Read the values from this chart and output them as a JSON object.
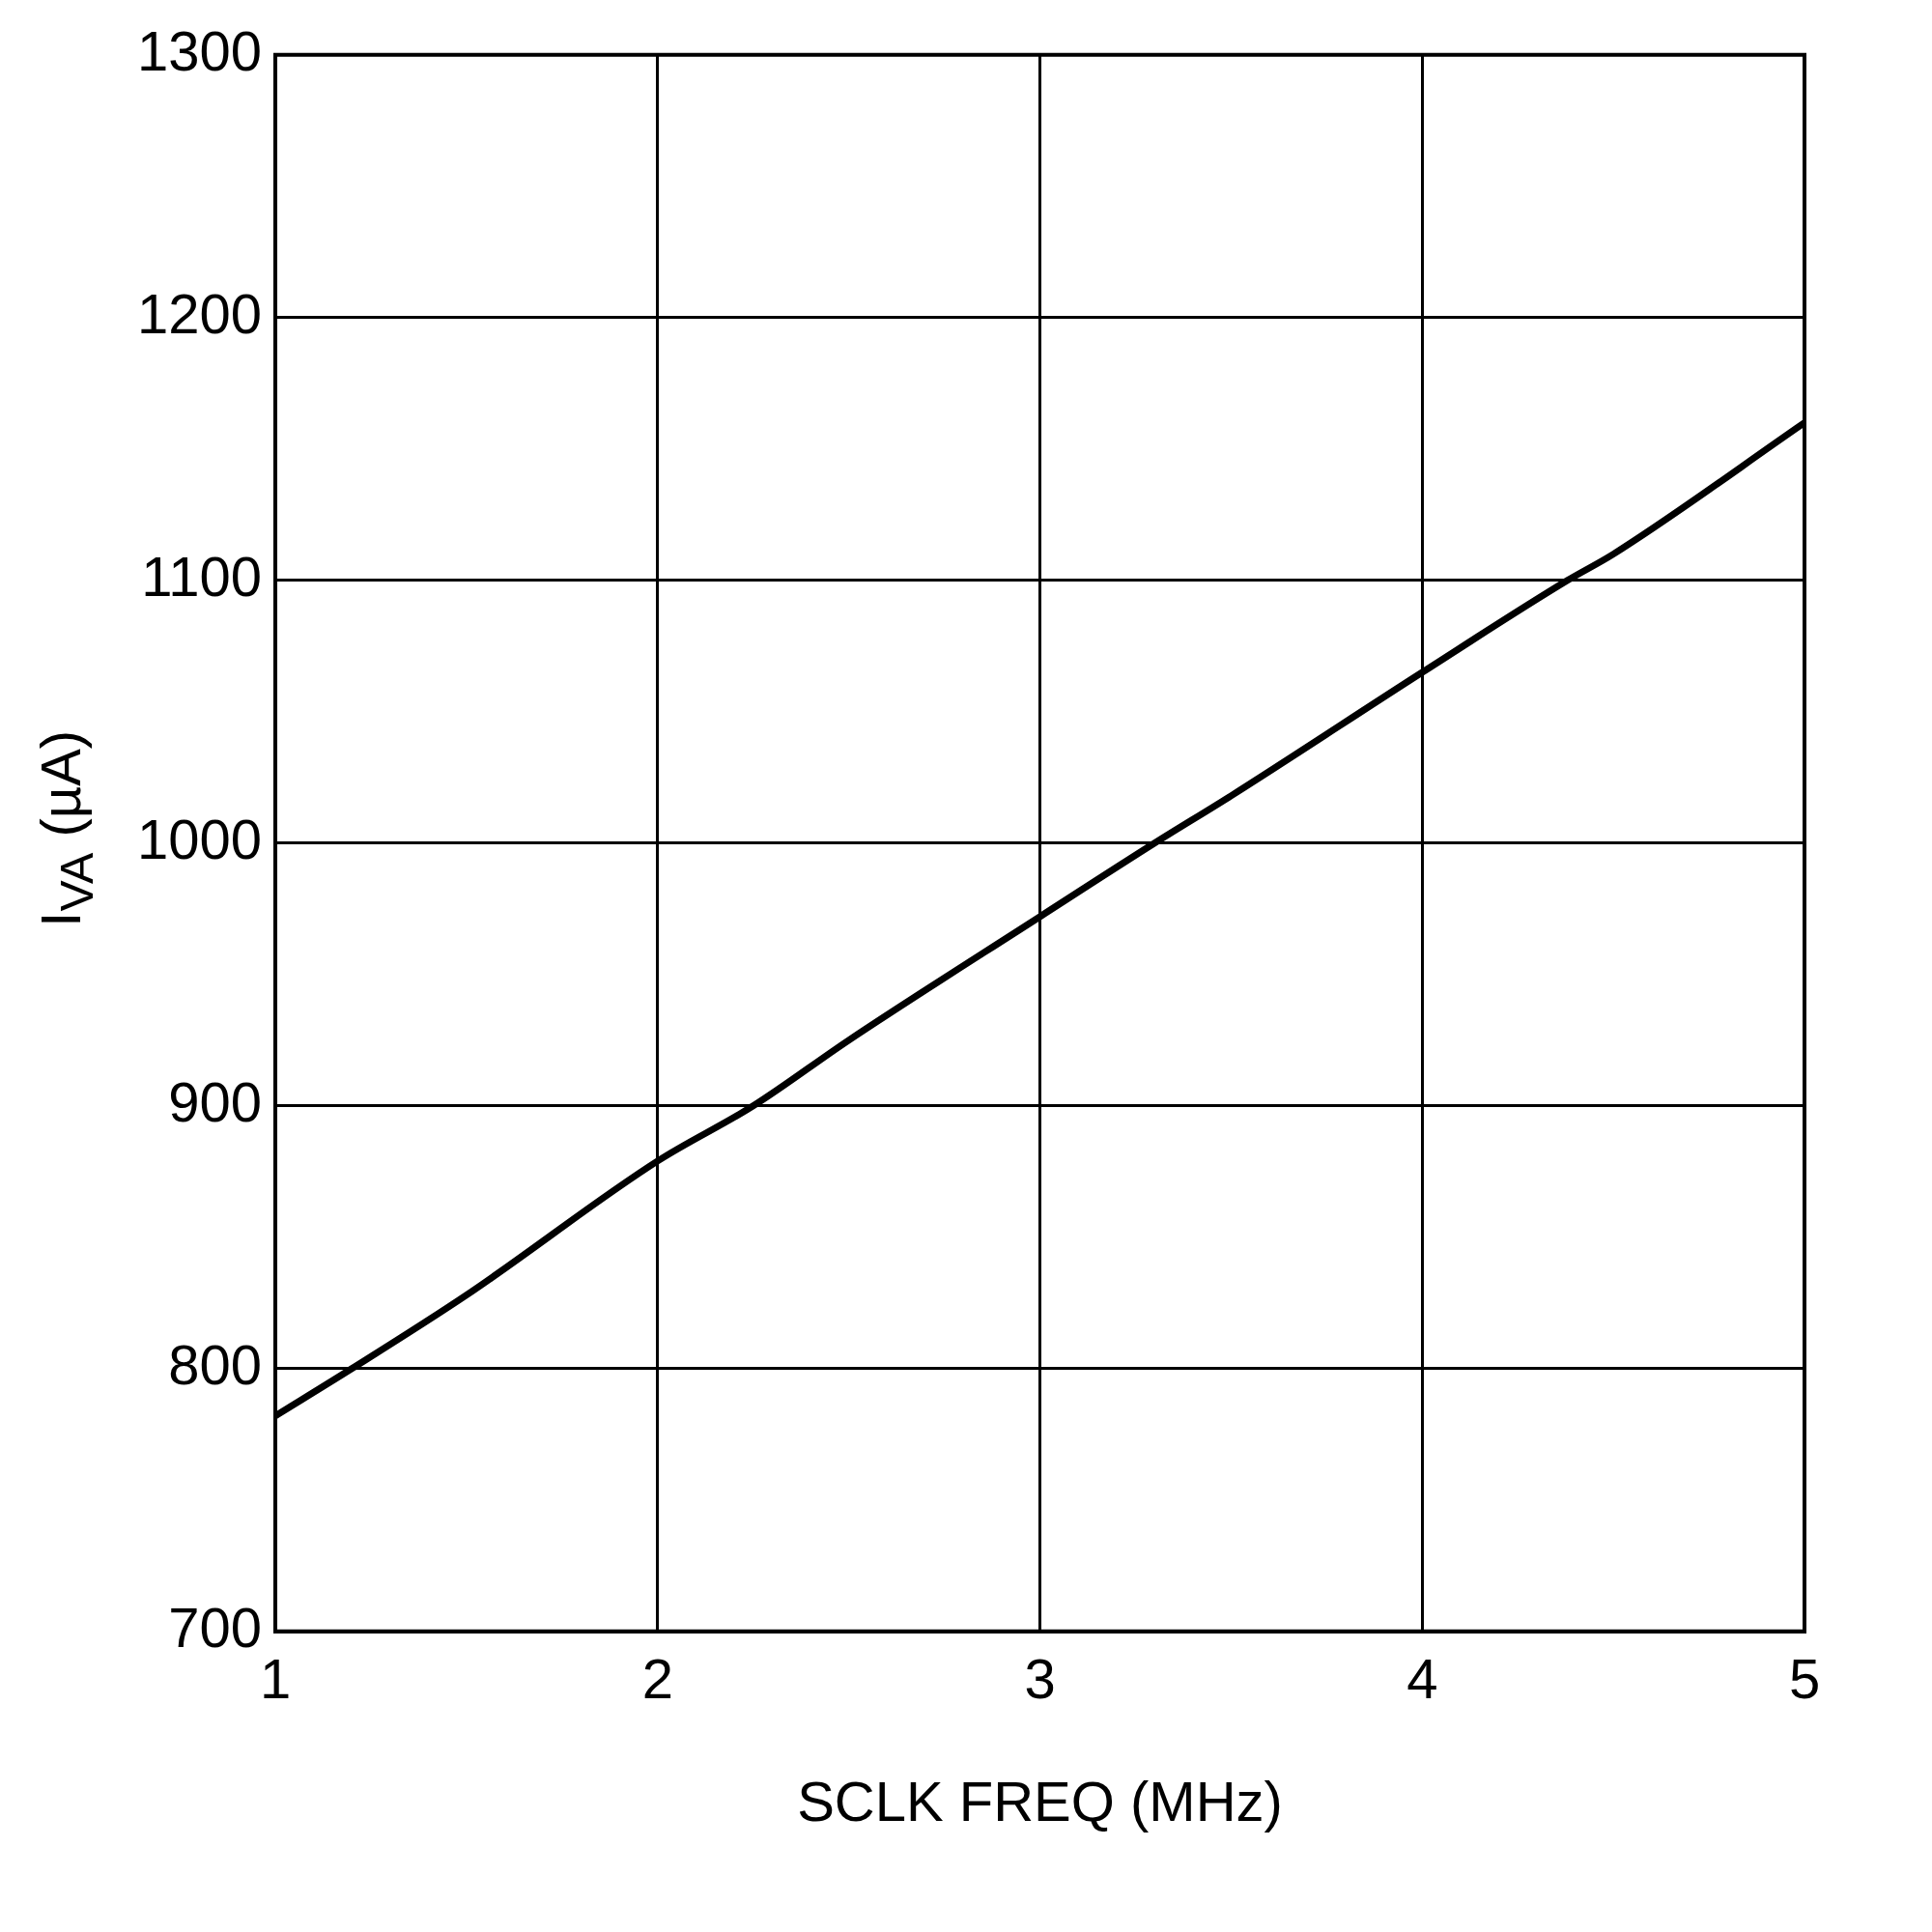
{
  "chart_data": {
    "type": "line",
    "xlabel": "SCLK FREQ (MHz)",
    "ylabel": "I$_{VA}$ (µA)",
    "x": [
      1,
      1.2,
      1.5,
      2,
      2.25,
      2.5,
      3,
      3.3,
      3.5,
      4,
      4.38,
      4.5,
      5
    ],
    "series": [
      {
        "color": "#000000",
        "values": [
          782,
          800,
          828,
          879,
          900,
          925,
          972,
          1000,
          1018,
          1065,
          1100,
          1110,
          1160
        ]
      }
    ],
    "xlim": [
      1,
      5
    ],
    "xticks": [
      1,
      2,
      3,
      4,
      5
    ],
    "ylim": [
      700,
      1300
    ],
    "yticks": [
      700,
      800,
      900,
      1000,
      1100,
      1200,
      1300
    ],
    "grid": true,
    "legend": false,
    "marker": "none",
    "line_style": "solid"
  }
}
